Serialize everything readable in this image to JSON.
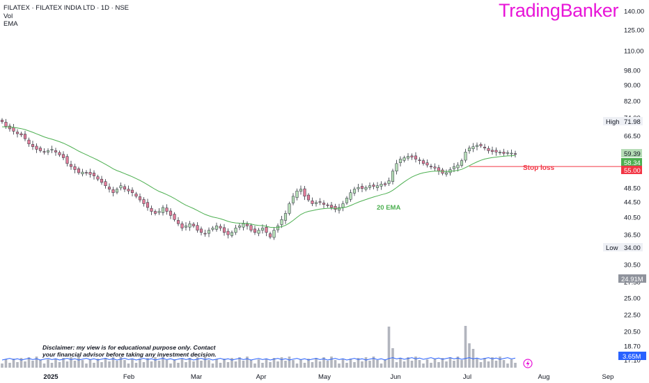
{
  "header": {
    "symbol_line": "FILATEX · FILATEX INDIA LTD · 1D · NSE",
    "vol_label": "Vol",
    "ema_label": "EMA"
  },
  "brand": "TradingBanker",
  "disclaimer": {
    "line1": "Disclaimer: my view is for educational purpose only. Contact",
    "line2": "your financial advisor before taking any investment decision."
  },
  "annotations": {
    "ema_label": "20 EMA",
    "stop_loss_label": "Stop loss"
  },
  "price_axis": {
    "ticks": [
      "140.00",
      "125.00",
      "110.00",
      "98.00",
      "90.00",
      "82.00",
      "74.00",
      "66.50",
      "59.50",
      "53.50",
      "48.50",
      "44.50",
      "40.50",
      "36.50",
      "33.50",
      "30.50",
      "27.50",
      "25.00",
      "22.50",
      "20.50",
      "18.70",
      "17.10"
    ]
  },
  "badges": {
    "high_label": "High",
    "high_value": "71.98",
    "low_label": "Low",
    "low_value": "34.00",
    "last_value": "59.39",
    "ema_value": "58.34",
    "stop_value": "55.00",
    "volume_value": "24.91M",
    "avg_volume_value": "3.65M"
  },
  "colors": {
    "up": "#b5dcb6",
    "down": "#e07d99",
    "wick": "#2a2e39",
    "ema": "#4caf50",
    "stop": "#f23645",
    "volume": "#b2b5be",
    "volume_avg": "#2962ff",
    "brand": "#e815d8"
  },
  "chart_data": {
    "type": "candlestick",
    "scale": "log",
    "x_labels": [
      "2025",
      "Feb",
      "Mar",
      "Apr",
      "May",
      "Jun",
      "Jul",
      "Aug",
      "Sep"
    ],
    "close": [
      72,
      70,
      69,
      68,
      67,
      66.5,
      65,
      63,
      62,
      61,
      60.5,
      60,
      60.5,
      61,
      60,
      59,
      58,
      56,
      55,
      54,
      53,
      53.2,
      53,
      52.5,
      52,
      51,
      50,
      49,
      48,
      47,
      48,
      49,
      48,
      47.5,
      47,
      46,
      45,
      44,
      43,
      42,
      41.5,
      42,
      43,
      42,
      41,
      40,
      39,
      38,
      38.5,
      39,
      38.5,
      37.5,
      37,
      36.8,
      37.5,
      38,
      38.5,
      38,
      37,
      36.5,
      37,
      38,
      38.5,
      39,
      38.5,
      37.5,
      37,
      37.5,
      38,
      37,
      36,
      37.5,
      38.5,
      40,
      41.5,
      44,
      46,
      47.5,
      48,
      46,
      45,
      44,
      44.3,
      44.5,
      43.8,
      43.5,
      43,
      42.5,
      43,
      44,
      45.5,
      47,
      48,
      48.5,
      48.2,
      48.5,
      49,
      48.8,
      49,
      49.5,
      49.3,
      50.5,
      53.5,
      56,
      57.5,
      58,
      58.5,
      58.2,
      57.5,
      57,
      56,
      55.5,
      55,
      54.5,
      53.5,
      52.8,
      53,
      54,
      55,
      55.5,
      57,
      60,
      61.5,
      62,
      62.5,
      62.3,
      61.5,
      60.5,
      60.2,
      60,
      60,
      59.5,
      59.8,
      59.6,
      59.39
    ],
    "ema20_last": 58.34,
    "stop_loss": 55.0,
    "high": 71.98,
    "low": 34.0,
    "volume_peak_label": "24.91M",
    "volume_avg_label": "3.65M"
  }
}
